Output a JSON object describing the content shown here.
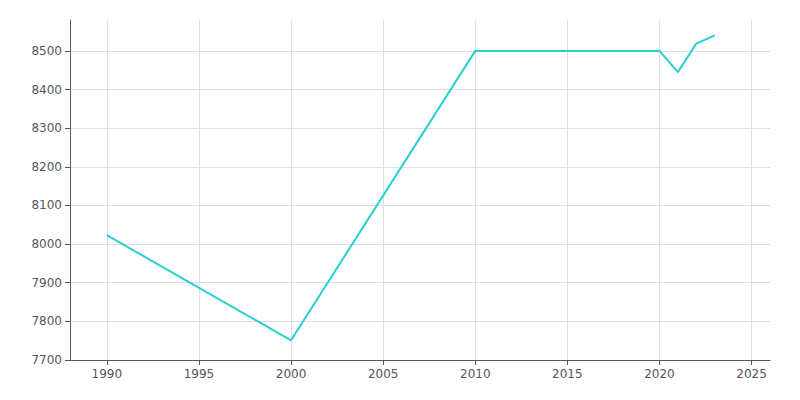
{
  "chart_data": {
    "type": "line",
    "x": [
      1990,
      2000,
      2010,
      2020,
      2021,
      2022,
      2023
    ],
    "values": [
      8023,
      7751,
      8500,
      8500,
      8445,
      8519,
      8540
    ],
    "color": "#2acfd0",
    "xlim": [
      1988,
      2026
    ],
    "ylim": [
      7700,
      8580
    ],
    "xticks": [
      1990,
      1995,
      2000,
      2005,
      2010,
      2015,
      2020,
      2025
    ],
    "yticks": [
      7700,
      7800,
      7900,
      8000,
      8100,
      8200,
      8300,
      8400,
      8500
    ],
    "grid": true
  }
}
